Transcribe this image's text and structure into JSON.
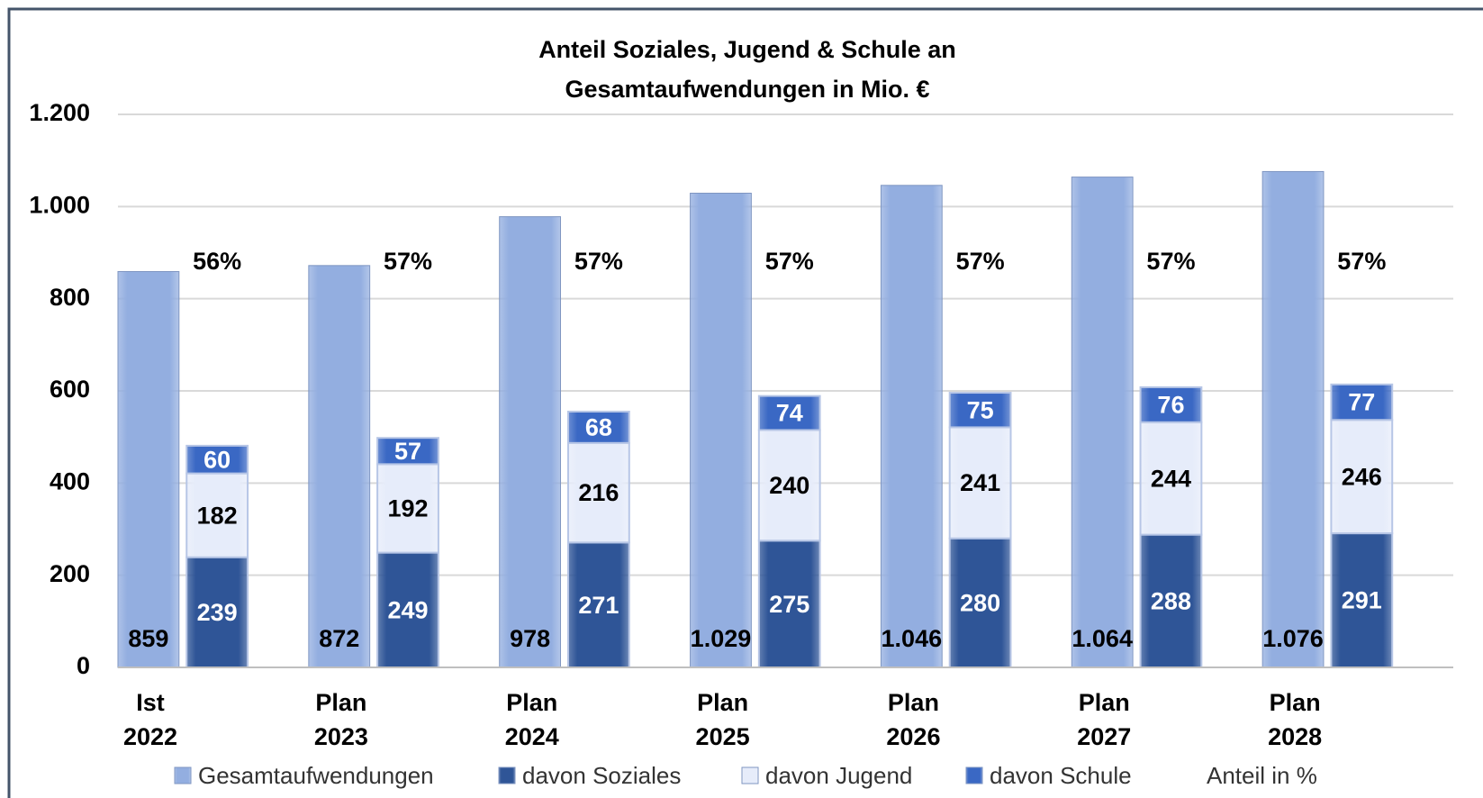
{
  "chart_data": {
    "type": "bar",
    "title": "Anteil Soziales, Jugend & Schule an\nGesamtaufwendungen in Mio. €",
    "categories": [
      "Ist\n2022",
      "Plan\n2023",
      "Plan\n2024",
      "Plan\n2025",
      "Plan\n2026",
      "Plan\n2027",
      "Plan\n2028"
    ],
    "series": [
      {
        "name": "Gesamtaufwendungen",
        "color": "#93aee0",
        "values": [
          859,
          872,
          978,
          1029,
          1046,
          1064,
          1076
        ],
        "value_labels": [
          "859",
          "872",
          "978",
          "1.029",
          "1.046",
          "1.064",
          "1.076"
        ]
      },
      {
        "name": "davon Soziales",
        "color": "#2f5597",
        "values": [
          239,
          249,
          271,
          275,
          280,
          288,
          291
        ]
      },
      {
        "name": "davon Jugend",
        "color": "#e6ecfa",
        "values": [
          182,
          192,
          216,
          240,
          241,
          244,
          246
        ]
      },
      {
        "name": "davon Schule",
        "color": "#3a68c4",
        "values": [
          60,
          57,
          68,
          74,
          75,
          76,
          77
        ]
      },
      {
        "name": "Anteil in %",
        "values": [
          56,
          57,
          57,
          57,
          57,
          57,
          57
        ],
        "value_labels": [
          "56%",
          "57%",
          "57%",
          "57%",
          "57%",
          "57%",
          "57%"
        ]
      }
    ],
    "ylim": [
      0,
      1200
    ],
    "yticks": [
      0,
      200,
      400,
      600,
      800,
      {
        "value": 1000,
        "label": "1.000"
      },
      {
        "value": 1200,
        "label": "1.200"
      }
    ],
    "grid": true,
    "legend": "bottom"
  }
}
